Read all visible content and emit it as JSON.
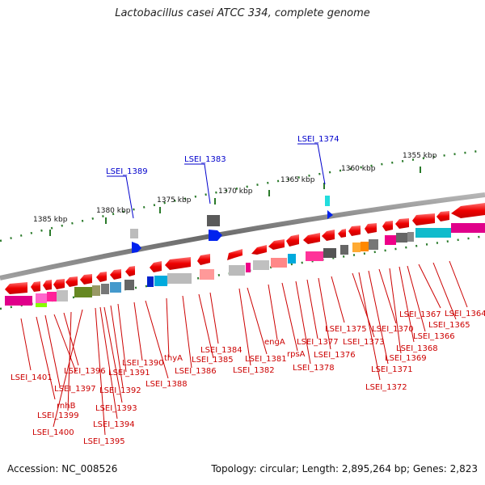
{
  "title": "Lactobacillus casei ATCC 334, complete genome",
  "accession": "Accession: NC_008526",
  "summary": "Topology: circular; Length: 2,895,264 bp; Genes: 2,823",
  "kbp_ticks": [
    "1385 kbp",
    "1380 kbp",
    "1375 kbp",
    "1370 kbp",
    "1365 kbp",
    "1360 kbp",
    "1355 kbp"
  ],
  "highlight_labels": [
    "LSEI_1389",
    "LSEI_1383",
    "LSEI_1374"
  ],
  "gene_labels": [
    "LSEI_1401",
    "rnhB",
    "LSEI_1397",
    "LSEI_1396",
    "LSEI_1399",
    "LSEI_1400",
    "LSEI_1395",
    "LSEI_1394",
    "LSEI_1393",
    "LSEI_1392",
    "LSEI_1391",
    "LSEI_1390",
    "LSEI_1388",
    "thyA",
    "LSEI_1386",
    "LSEI_1385",
    "LSEI_1384",
    "LSEI_1382",
    "LSEI_1381",
    "engA",
    "rpsA",
    "LSEI_1378",
    "LSEI_1377",
    "LSEI_1376",
    "LSEI_1375",
    "LSEI_1373",
    "LSEI_1372",
    "LSEI_1371",
    "LSEI_1370",
    "LSEI_1369",
    "LSEI_1368",
    "LSEI_1367",
    "LSEI_1366",
    "LSEI_1365",
    "LSEI_1364"
  ],
  "colors": {
    "gene_label": "#cc0000",
    "highlight_label": "#0000cc",
    "forward_gene": "#ee0000",
    "backbone": "#7a7a7a"
  }
}
